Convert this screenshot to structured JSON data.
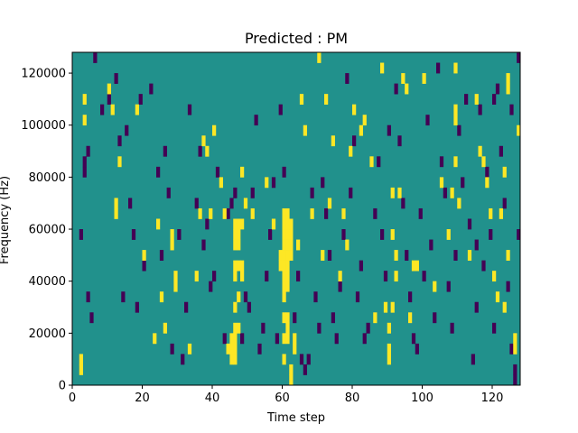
{
  "chart_data": {
    "type": "heatmap",
    "title": "Predicted : PM",
    "xlabel": "Time step",
    "ylabel": "Frequency (Hz)",
    "xlim": [
      0,
      128
    ],
    "ylim": [
      0,
      128000
    ],
    "x_ticks": [
      "0",
      "20",
      "40",
      "60",
      "80",
      "100",
      "120"
    ],
    "y_ticks": [
      "0",
      "20000",
      "40000",
      "60000",
      "80000",
      "100000",
      "120000"
    ],
    "n_time_steps": 128,
    "n_freq_bins": 32,
    "bin_height_hz": 4000,
    "levels": {
      "low": -1,
      "background": 0,
      "high": 1
    },
    "colors": {
      "low": "#440154",
      "background": "#21918c",
      "high": "#fde725",
      "axis": "#000000"
    },
    "background_level": 0,
    "cells_high": [
      [
        2,
        2
      ],
      [
        2,
        1
      ],
      [
        3,
        27
      ],
      [
        3,
        25
      ],
      [
        10,
        28
      ],
      [
        11,
        26
      ],
      [
        12,
        16
      ],
      [
        12,
        17
      ],
      [
        13,
        21
      ],
      [
        18,
        26
      ],
      [
        20,
        12
      ],
      [
        23,
        4
      ],
      [
        24,
        15
      ],
      [
        25,
        8
      ],
      [
        26,
        5
      ],
      [
        28,
        13
      ],
      [
        28,
        14
      ],
      [
        29,
        10
      ],
      [
        29,
        9
      ],
      [
        33,
        3
      ],
      [
        35,
        10
      ],
      [
        36,
        16
      ],
      [
        37,
        23
      ],
      [
        38,
        22
      ],
      [
        39,
        16
      ],
      [
        40,
        24
      ],
      [
        42,
        19
      ],
      [
        43,
        16
      ],
      [
        44,
        3
      ],
      [
        45,
        2
      ],
      [
        45,
        3
      ],
      [
        45,
        4
      ],
      [
        46,
        2
      ],
      [
        46,
        3
      ],
      [
        46,
        4
      ],
      [
        46,
        5
      ],
      [
        46,
        7
      ],
      [
        46,
        10
      ],
      [
        46,
        11
      ],
      [
        46,
        13
      ],
      [
        46,
        14
      ],
      [
        46,
        15
      ],
      [
        47,
        5
      ],
      [
        47,
        8
      ],
      [
        47,
        11
      ],
      [
        47,
        13
      ],
      [
        47,
        14
      ],
      [
        47,
        15
      ],
      [
        48,
        10
      ],
      [
        48,
        11
      ],
      [
        48,
        15
      ],
      [
        48,
        20
      ],
      [
        49,
        17
      ],
      [
        51,
        16
      ],
      [
        55,
        19
      ],
      [
        57,
        15
      ],
      [
        59,
        11
      ],
      [
        59,
        12
      ],
      [
        60,
        2
      ],
      [
        60,
        4
      ],
      [
        60,
        6
      ],
      [
        60,
        8
      ],
      [
        60,
        9
      ],
      [
        60,
        10
      ],
      [
        60,
        11
      ],
      [
        60,
        12
      ],
      [
        60,
        13
      ],
      [
        60,
        14
      ],
      [
        60,
        15
      ],
      [
        60,
        16
      ],
      [
        61,
        4
      ],
      [
        61,
        5
      ],
      [
        61,
        6
      ],
      [
        61,
        9
      ],
      [
        61,
        10
      ],
      [
        61,
        11
      ],
      [
        61,
        12
      ],
      [
        61,
        13
      ],
      [
        61,
        14
      ],
      [
        61,
        15
      ],
      [
        61,
        16
      ],
      [
        62,
        0
      ],
      [
        62,
        1
      ],
      [
        62,
        12
      ],
      [
        62,
        13
      ],
      [
        62,
        14
      ],
      [
        62,
        15
      ],
      [
        63,
        3
      ],
      [
        63,
        4
      ],
      [
        64,
        13
      ],
      [
        65,
        27
      ],
      [
        66,
        24
      ],
      [
        68,
        16
      ],
      [
        70,
        31
      ],
      [
        71,
        12
      ],
      [
        72,
        27
      ],
      [
        73,
        17
      ],
      [
        74,
        23
      ],
      [
        76,
        10
      ],
      [
        77,
        16
      ],
      [
        78,
        13
      ],
      [
        79,
        22
      ],
      [
        80,
        26
      ],
      [
        82,
        24
      ],
      [
        83,
        25
      ],
      [
        85,
        21
      ],
      [
        86,
        6
      ],
      [
        88,
        30
      ],
      [
        89,
        7
      ],
      [
        90,
        2
      ],
      [
        90,
        3
      ],
      [
        90,
        5
      ],
      [
        91,
        7
      ],
      [
        91,
        14
      ],
      [
        91,
        18
      ],
      [
        92,
        10
      ],
      [
        92,
        12
      ],
      [
        93,
        18
      ],
      [
        94,
        29
      ],
      [
        95,
        28
      ],
      [
        96,
        6
      ],
      [
        97,
        11
      ],
      [
        98,
        11
      ],
      [
        100,
        29
      ],
      [
        103,
        9
      ],
      [
        105,
        19
      ],
      [
        107,
        14
      ],
      [
        108,
        18
      ],
      [
        109,
        25
      ],
      [
        109,
        26
      ],
      [
        109,
        21
      ],
      [
        109,
        30
      ],
      [
        110,
        17
      ],
      [
        113,
        12
      ],
      [
        115,
        27
      ],
      [
        116,
        22
      ],
      [
        117,
        21
      ],
      [
        118,
        19
      ],
      [
        119,
        16
      ],
      [
        120,
        10
      ],
      [
        121,
        8
      ],
      [
        122,
        16
      ],
      [
        123,
        20
      ],
      [
        124,
        29
      ],
      [
        124,
        28
      ],
      [
        126,
        4
      ],
      [
        126,
        3
      ],
      [
        127,
        24
      ],
      [
        124,
        12
      ],
      [
        123,
        7
      ]
    ],
    "cells_low": [
      [
        2,
        14
      ],
      [
        3,
        20
      ],
      [
        3,
        21
      ],
      [
        4,
        22
      ],
      [
        4,
        8
      ],
      [
        5,
        6
      ],
      [
        6,
        31
      ],
      [
        8,
        26
      ],
      [
        10,
        27
      ],
      [
        12,
        29
      ],
      [
        13,
        23
      ],
      [
        14,
        8
      ],
      [
        15,
        24
      ],
      [
        16,
        17
      ],
      [
        17,
        14
      ],
      [
        18,
        7
      ],
      [
        19,
        27
      ],
      [
        20,
        11
      ],
      [
        22,
        28
      ],
      [
        24,
        20
      ],
      [
        25,
        12
      ],
      [
        26,
        22
      ],
      [
        27,
        18
      ],
      [
        28,
        3
      ],
      [
        30,
        14
      ],
      [
        31,
        2
      ],
      [
        32,
        7
      ],
      [
        33,
        26
      ],
      [
        35,
        17
      ],
      [
        36,
        22
      ],
      [
        37,
        13
      ],
      [
        38,
        15
      ],
      [
        39,
        9
      ],
      [
        40,
        10
      ],
      [
        41,
        20
      ],
      [
        43,
        4
      ],
      [
        44,
        16
      ],
      [
        45,
        17
      ],
      [
        46,
        18
      ],
      [
        48,
        4
      ],
      [
        49,
        8
      ],
      [
        50,
        7
      ],
      [
        51,
        18
      ],
      [
        52,
        25
      ],
      [
        53,
        3
      ],
      [
        54,
        5
      ],
      [
        55,
        10
      ],
      [
        56,
        14
      ],
      [
        57,
        19
      ],
      [
        58,
        4
      ],
      [
        59,
        26
      ],
      [
        60,
        20
      ],
      [
        63,
        6
      ],
      [
        64,
        10
      ],
      [
        65,
        2
      ],
      [
        66,
        1
      ],
      [
        67,
        2
      ],
      [
        68,
        18
      ],
      [
        69,
        8
      ],
      [
        70,
        5
      ],
      [
        71,
        19
      ],
      [
        72,
        16
      ],
      [
        73,
        12
      ],
      [
        74,
        6
      ],
      [
        75,
        4
      ],
      [
        76,
        9
      ],
      [
        77,
        14
      ],
      [
        78,
        29
      ],
      [
        79,
        18
      ],
      [
        80,
        23
      ],
      [
        81,
        8
      ],
      [
        82,
        11
      ],
      [
        83,
        4
      ],
      [
        84,
        5
      ],
      [
        86,
        16
      ],
      [
        87,
        21
      ],
      [
        88,
        14
      ],
      [
        89,
        10
      ],
      [
        90,
        24
      ],
      [
        92,
        28
      ],
      [
        93,
        23
      ],
      [
        94,
        17
      ],
      [
        95,
        12
      ],
      [
        96,
        8
      ],
      [
        97,
        4
      ],
      [
        98,
        3
      ],
      [
        99,
        16
      ],
      [
        100,
        10
      ],
      [
        101,
        25
      ],
      [
        102,
        13
      ],
      [
        103,
        6
      ],
      [
        104,
        30
      ],
      [
        105,
        21
      ],
      [
        106,
        18
      ],
      [
        107,
        9
      ],
      [
        108,
        5
      ],
      [
        109,
        12
      ],
      [
        110,
        24
      ],
      [
        111,
        19
      ],
      [
        112,
        27
      ],
      [
        113,
        15
      ],
      [
        114,
        2
      ],
      [
        115,
        7
      ],
      [
        116,
        26
      ],
      [
        117,
        11
      ],
      [
        118,
        20
      ],
      [
        119,
        14
      ],
      [
        120,
        5
      ],
      [
        121,
        28
      ],
      [
        122,
        22
      ],
      [
        123,
        17
      ],
      [
        124,
        9
      ],
      [
        125,
        3
      ],
      [
        126,
        1
      ],
      [
        126,
        0
      ],
      [
        127,
        31
      ],
      [
        127,
        14
      ],
      [
        125,
        26
      ],
      [
        120,
        27
      ],
      [
        115,
        13
      ]
    ]
  }
}
